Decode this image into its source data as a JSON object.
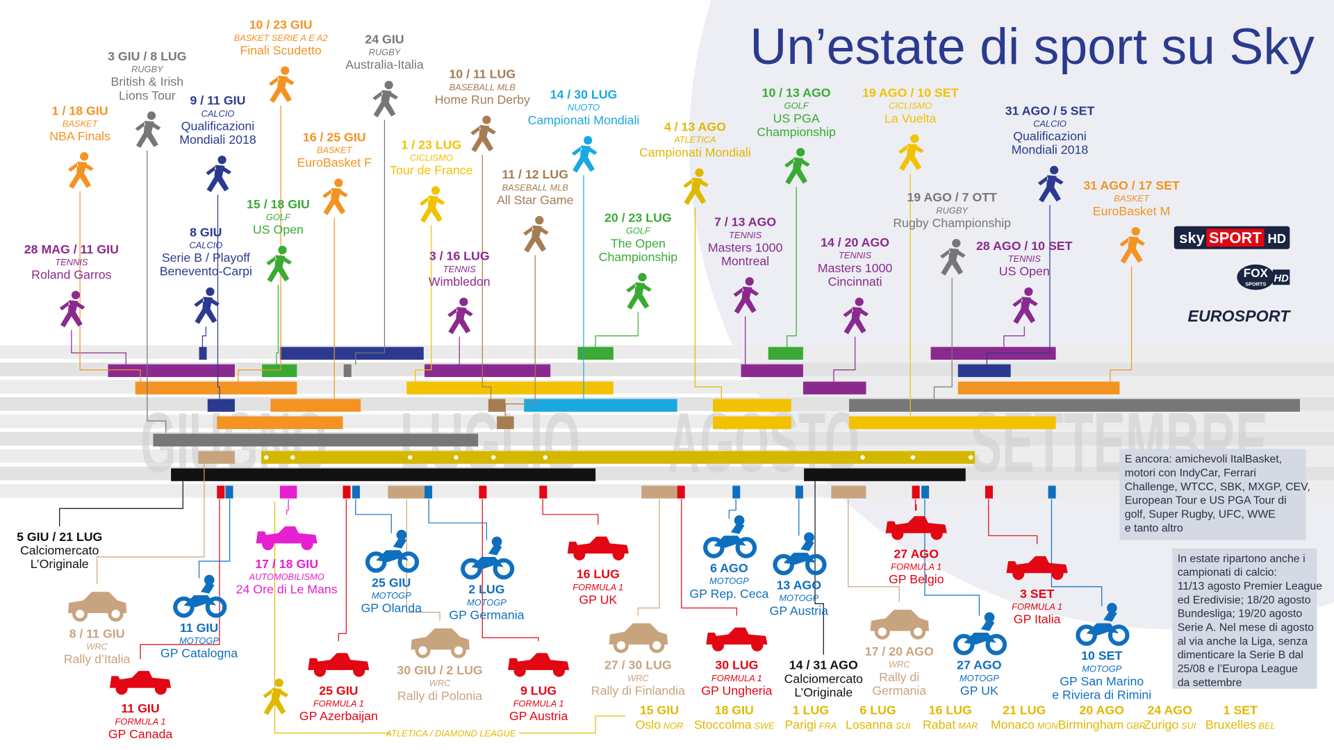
{
  "title": "Un’estate di sport su Sky",
  "months": [
    "GIUGNO",
    "LUGLIO",
    "AGOSTO",
    "SETTEMBRE"
  ],
  "top_events": [
    {
      "date": "28 MAG / 11 GIU",
      "sport": "TENNIS",
      "name": [
        "Roland Garros"
      ],
      "color": "#8b2a8e"
    },
    {
      "date": "1 / 18 GIU",
      "sport": "BASKET",
      "name": [
        "NBA Finals"
      ],
      "color": "#f39322"
    },
    {
      "date": "3 GIU / 8 LUG",
      "sport": "RUGBY",
      "name": [
        "British & Irish",
        "Lions Tour"
      ],
      "color": "#777777"
    },
    {
      "date": "9 / 11 GIU",
      "sport": "CALCIO",
      "name": [
        "Qualificazioni",
        "Mondiali 2018"
      ],
      "color": "#2b3a8f"
    },
    {
      "date": "8 GIU",
      "sport": "CALCIO",
      "name": [
        "Serie B / Playoff",
        "Benevento-Carpi"
      ],
      "color": "#2b3a8f"
    },
    {
      "date": "10 / 23 GIU",
      "sport": "BASKET SERIE A E A2",
      "name": [
        "Finali Scudetto"
      ],
      "color": "#f39322"
    },
    {
      "date": "15 / 18 GIU",
      "sport": "GOLF",
      "name": [
        "US Open"
      ],
      "color": "#3aaa35"
    },
    {
      "date": "16 / 25 GIU",
      "sport": "BASKET",
      "name": [
        "EuroBasket F"
      ],
      "color": "#f39322"
    },
    {
      "date": "24 GIU",
      "sport": "RUGBY",
      "name": [
        "Australia-Italia"
      ],
      "color": "#777777"
    },
    {
      "date": "1 / 23 LUG",
      "sport": "CICLISMO",
      "name": [
        "Tour de France"
      ],
      "color": "#f2c200"
    },
    {
      "date": "10 / 11 LUG",
      "sport": "BASEBALL MLB",
      "name": [
        "Home Run Derby"
      ],
      "color": "#a67c52"
    },
    {
      "date": "3 / 16 LUG",
      "sport": "TENNIS",
      "name": [
        "Wimbledon"
      ],
      "color": "#8b2a8e"
    },
    {
      "date": "11 / 12 LUG",
      "sport": "BASEBALL MLB",
      "name": [
        "All Star Game"
      ],
      "color": "#a67c52"
    },
    {
      "date": "14 / 30 LUG",
      "sport": "NUOTO",
      "name": [
        "Campionati Mondiali"
      ],
      "color": "#1ba8e0"
    },
    {
      "date": "20 / 23 LUG",
      "sport": "GOLF",
      "name": [
        "The Open",
        "Championship"
      ],
      "color": "#3aaa35"
    },
    {
      "date": "4 / 13 AGO",
      "sport": "ATLETICA",
      "name": [
        "Campionati Mondiali"
      ],
      "color": "#e0b800"
    },
    {
      "date": "7 / 13 AGO",
      "sport": "TENNIS",
      "name": [
        "Masters 1000",
        "Montreal"
      ],
      "color": "#8b2a8e"
    },
    {
      "date": "10 / 13 AGO",
      "sport": "GOLF",
      "name": [
        "US PGA",
        "Championship"
      ],
      "color": "#3aaa35"
    },
    {
      "date": "14 / 20 AGO",
      "sport": "TENNIS",
      "name": [
        "Masters 1000",
        "Cincinnati"
      ],
      "color": "#8b2a8e"
    },
    {
      "date": "19 AGO / 10 SET",
      "sport": "CICLISMO",
      "name": [
        "La Vuelta"
      ],
      "color": "#f2c200"
    },
    {
      "date": "19 AGO / 7 OTT",
      "sport": "RUGBY",
      "name": [
        "Rugby Championship"
      ],
      "color": "#777777"
    },
    {
      "date": "31 AGO / 5 SET",
      "sport": "CALCIO",
      "name": [
        "Qualificazioni",
        "Mondiali 2018"
      ],
      "color": "#2b3a8f"
    },
    {
      "date": "28 AGO / 10 SET",
      "sport": "TENNIS",
      "name": [
        "US Open"
      ],
      "color": "#8b2a8e"
    },
    {
      "date": "31 AGO / 17 SET",
      "sport": "BASKET",
      "name": [
        "EuroBasket M"
      ],
      "color": "#f39322"
    }
  ],
  "bottom_events": [
    {
      "date": "5 GIU / 21 LUG",
      "name": [
        "Calciomercato",
        "L’Originale"
      ],
      "color": "#111111"
    },
    {
      "date": "8 / 11 GIU",
      "sport": "WRC",
      "name": [
        "Rally d’Italia"
      ],
      "color": "#c8a47e"
    },
    {
      "date": "11 GIU",
      "sport": "FORMULA 1",
      "name": [
        "GP Canada"
      ],
      "color": "#e30613"
    },
    {
      "date": "11 GIU",
      "sport": "MOTOGP",
      "name": [
        "GP Catalogna"
      ],
      "color": "#0f6fbf"
    },
    {
      "date": "17 / 18 GIU",
      "sport": "AUTOMOBILISMO",
      "name": [
        "24 Ore di Le Mans"
      ],
      "color": "#e61fd0"
    },
    {
      "date": "25 GIU",
      "sport": "FORMULA 1",
      "name": [
        "GP Azerbaijan"
      ],
      "color": "#e30613"
    },
    {
      "date": "25 GIU",
      "sport": "MOTOGP",
      "name": [
        "GP Olanda"
      ],
      "color": "#0f6fbf"
    },
    {
      "date": "30 GIU / 2 LUG",
      "sport": "WRC",
      "name": [
        "Rally di Polonia"
      ],
      "color": "#c8a47e"
    },
    {
      "date": "2 LUG",
      "sport": "MOTOGP",
      "name": [
        "GP Germania"
      ],
      "color": "#0f6fbf"
    },
    {
      "date": "9 LUG",
      "sport": "FORMULA 1",
      "name": [
        "GP Austria"
      ],
      "color": "#e30613"
    },
    {
      "date": "16 LUG",
      "sport": "FORMULA 1",
      "name": [
        "GP UK"
      ],
      "color": "#e30613"
    },
    {
      "date": "27 / 30 LUG",
      "sport": "WRC",
      "name": [
        "Rally di Finlandia"
      ],
      "color": "#c8a47e"
    },
    {
      "date": "30 LUG",
      "sport": "FORMULA 1",
      "name": [
        "GP Ungheria"
      ],
      "color": "#e30613"
    },
    {
      "date": "6 AGO",
      "sport": "MOTOGP",
      "name": [
        "GP Rep. Ceca"
      ],
      "color": "#0f6fbf"
    },
    {
      "date": "13 AGO",
      "sport": "MOTOGP",
      "name": [
        "GP Austria"
      ],
      "color": "#0f6fbf"
    },
    {
      "date": "14 / 31 AGO",
      "name": [
        "Calciomercato",
        "L’Originale"
      ],
      "color": "#111111"
    },
    {
      "date": "17 / 20 AGO",
      "sport": "WRC",
      "name": [
        "Rally di",
        "Germania"
      ],
      "color": "#c8a47e"
    },
    {
      "date": "27 AGO",
      "sport": "FORMULA 1",
      "name": [
        "GP Belgio"
      ],
      "color": "#e30613"
    },
    {
      "date": "27 AGO",
      "sport": "MOTOGP",
      "name": [
        "GP UK"
      ],
      "color": "#0f6fbf"
    },
    {
      "date": "3 SET",
      "sport": "FORMULA 1",
      "name": [
        "GP Italia"
      ],
      "color": "#e30613"
    },
    {
      "date": "10 SET",
      "sport": "MOTOGP",
      "name": [
        "GP San Marino",
        "e Riviera di Rimini"
      ],
      "color": "#0f6fbf"
    }
  ],
  "diamond_league": {
    "label": "ATLETICA / DIAMOND LEAGUE",
    "color": "#e0b800",
    "meetings": [
      {
        "date": "15 GIU",
        "city": "Oslo",
        "country": "NOR"
      },
      {
        "date": "18 GIU",
        "city": "Stoccolma",
        "country": "SWE"
      },
      {
        "date": "1 LUG",
        "city": "Parigi",
        "country": "FRA"
      },
      {
        "date": "6 LUG",
        "city": "Losanna",
        "country": "SUI"
      },
      {
        "date": "16 LUG",
        "city": "Rabat",
        "country": "MAR"
      },
      {
        "date": "21 LUG",
        "city": "Monaco",
        "country": "MON"
      },
      {
        "date": "20 AGO",
        "city": "Birmingham",
        "country": "GBR"
      },
      {
        "date": "24 AGO",
        "city": "Zurigo",
        "country": "SUI"
      },
      {
        "date": "1 SET",
        "city": "Bruxelles",
        "country": "BEL"
      }
    ]
  },
  "notes": [
    [
      "E ancora: amichevoli ItalBasket,",
      "motori con IndyCar, Ferrari",
      "Challenge, WTCC, SBK, MXGP, CEV,",
      "European Tour e US PGA Tour di",
      "golf, Super Rugby, UFC, WWE",
      "e tanto altro"
    ],
    [
      "In estate ripartono anche i",
      "campionati di calcio:",
      "11/13 agosto Premier League",
      "ed Eredivisie; 18/20 agosto",
      "Bundesliga; 19/20 agosto",
      "Serie A. Nel mese di agosto",
      "al via anche la Liga, senza",
      "dimenticare la Serie B dal",
      "25/08 e l’Europa League",
      "da settembre"
    ]
  ],
  "logos": {
    "sky": [
      "sky",
      "SPORT",
      "HD"
    ],
    "fox": [
      "FOX",
      "SPORTS",
      "HD"
    ],
    "eurosport": "EUROSPORT"
  }
}
